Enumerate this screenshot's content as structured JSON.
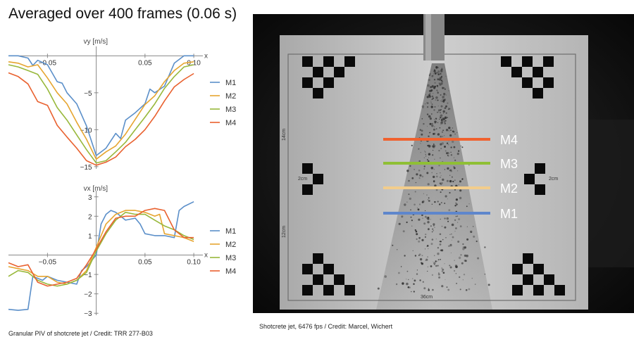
{
  "title": "Averaged over 400 frames (0.06 s)",
  "caption_left": "Granular PIV of shotcrete jet / Credit: TRR 277-B03",
  "caption_right": "Shotcrete jet, 6476 fps / Credit: Marcel, Wichert",
  "colors": {
    "M1": "#5b8fc9",
    "M2": "#e6a530",
    "M3": "#98b83b",
    "M4": "#e9612f"
  },
  "chart_data": [
    {
      "type": "line",
      "ylabel": "vy [m/s]",
      "xlabel": "x",
      "xlim": [
        -0.09,
        0.105
      ],
      "ylim": [
        -15.3,
        0.7
      ],
      "xticks": [
        -0.05,
        0.05,
        0.1
      ],
      "xtick_labels": [
        "−0.05",
        "0.05",
        "0.10"
      ],
      "yticks": [
        -5,
        -10,
        -15
      ],
      "ytick_labels": [
        "−5",
        "−10",
        "−15"
      ],
      "legend_position": "right",
      "series": [
        {
          "name": "M1",
          "x": [
            -0.09,
            -0.08,
            -0.07,
            -0.065,
            -0.06,
            -0.05,
            -0.04,
            -0.035,
            -0.03,
            -0.02,
            -0.01,
            0,
            0.01,
            0.02,
            0.025,
            0.03,
            0.04,
            0.05,
            0.055,
            0.06,
            0.07,
            0.08,
            0.09,
            0.1
          ],
          "y": [
            0,
            0,
            -0.3,
            -1.3,
            -0.6,
            -1.2,
            -3.5,
            -3.7,
            -5,
            -6.5,
            -9.5,
            -13.5,
            -12.5,
            -10.5,
            -11.2,
            -8.7,
            -7.7,
            -6.5,
            -4.5,
            -5,
            -4.1,
            -1,
            0,
            0
          ]
        },
        {
          "name": "M2",
          "x": [
            -0.09,
            -0.08,
            -0.07,
            -0.06,
            -0.05,
            -0.04,
            -0.03,
            -0.02,
            -0.01,
            0,
            0.01,
            0.02,
            0.03,
            0.04,
            0.05,
            0.06,
            0.07,
            0.08,
            0.09,
            0.1
          ],
          "y": [
            -0.8,
            -1,
            -1.5,
            -1.2,
            -3,
            -5,
            -6.5,
            -9,
            -11.3,
            -14,
            -13,
            -12.2,
            -10.6,
            -8.6,
            -6.6,
            -5.4,
            -3.5,
            -2,
            -1,
            -0.8
          ]
        },
        {
          "name": "M3",
          "x": [
            -0.09,
            -0.08,
            -0.07,
            -0.06,
            -0.05,
            -0.04,
            -0.03,
            -0.02,
            -0.01,
            0,
            0.01,
            0.02,
            0.03,
            0.04,
            0.05,
            0.06,
            0.07,
            0.08,
            0.09,
            0.1
          ],
          "y": [
            -1.2,
            -1.5,
            -2,
            -2.5,
            -4.5,
            -7,
            -8.7,
            -10.7,
            -12.7,
            -14.5,
            -14.2,
            -13,
            -11.7,
            -10,
            -8.3,
            -6.5,
            -4.4,
            -2.8,
            -1.5,
            -1.2
          ]
        },
        {
          "name": "M4",
          "x": [
            -0.09,
            -0.08,
            -0.07,
            -0.06,
            -0.05,
            -0.04,
            -0.03,
            -0.02,
            -0.01,
            0,
            0.01,
            0.02,
            0.03,
            0.04,
            0.05,
            0.06,
            0.07,
            0.08,
            0.09,
            0.1
          ],
          "y": [
            -2.3,
            -2.8,
            -3.8,
            -6.2,
            -6.7,
            -9.4,
            -11,
            -12.5,
            -14.2,
            -14.8,
            -14.4,
            -13.7,
            -12.3,
            -11.3,
            -10,
            -8.2,
            -6.1,
            -4.2,
            -3.2,
            -2.4
          ]
        }
      ]
    },
    {
      "type": "line",
      "ylabel": "vx [m/s]",
      "xlabel": "x",
      "xlim": [
        -0.09,
        0.105
      ],
      "ylim": [
        -3.1,
        3.1
      ],
      "xticks": [
        -0.05,
        0.05,
        0.1
      ],
      "xtick_labels": [
        "−0.05",
        "0.05",
        "0.10"
      ],
      "yticks": [
        3,
        2,
        1,
        -1,
        -2,
        -3
      ],
      "ytick_labels": [
        "3",
        "2",
        "1",
        "−1",
        "−2",
        "−3"
      ],
      "legend_position": "right",
      "series": [
        {
          "name": "M1",
          "x": [
            -0.09,
            -0.08,
            -0.07,
            -0.065,
            -0.06,
            -0.055,
            -0.05,
            -0.04,
            -0.03,
            -0.02,
            -0.015,
            -0.01,
            0,
            0.005,
            0.01,
            0.015,
            0.02,
            0.03,
            0.04,
            0.045,
            0.05,
            0.06,
            0.07,
            0.08,
            0.085,
            0.09,
            0.1
          ],
          "y": [
            -2.8,
            -2.85,
            -2.8,
            -1.1,
            -1.2,
            -1.3,
            -1.1,
            -1.3,
            -1.4,
            -1.5,
            -0.8,
            -0.6,
            0,
            1.6,
            2.1,
            2.3,
            2.2,
            1.8,
            1.9,
            1.6,
            1.1,
            1,
            1,
            0.9,
            2.3,
            2.5,
            2.75
          ]
        },
        {
          "name": "M2",
          "x": [
            -0.09,
            -0.08,
            -0.07,
            -0.06,
            -0.05,
            -0.04,
            -0.03,
            -0.02,
            -0.01,
            0,
            0.01,
            0.02,
            0.03,
            0.04,
            0.05,
            0.06,
            0.065,
            0.07,
            0.08,
            0.09,
            0.1
          ],
          "y": [
            -0.6,
            -0.7,
            -0.8,
            -1.1,
            -1.1,
            -1.4,
            -1.5,
            -1.3,
            -0.8,
            0.4,
            1.6,
            2.1,
            2.3,
            2.3,
            2.2,
            2,
            2.1,
            1.1,
            1,
            0.9,
            0.7
          ]
        },
        {
          "name": "M3",
          "x": [
            -0.09,
            -0.08,
            -0.07,
            -0.06,
            -0.05,
            -0.04,
            -0.03,
            -0.02,
            -0.01,
            0,
            0.01,
            0.02,
            0.03,
            0.04,
            0.05,
            0.06,
            0.07,
            0.08,
            0.09,
            0.1
          ],
          "y": [
            -1.1,
            -0.8,
            -0.9,
            -1.3,
            -1.5,
            -1.6,
            -1.5,
            -1.3,
            -0.9,
            0.2,
            1.1,
            1.8,
            2.2,
            2.1,
            2.1,
            1.8,
            1.5,
            1.3,
            1,
            0.8
          ]
        },
        {
          "name": "M4",
          "x": [
            -0.09,
            -0.08,
            -0.07,
            -0.06,
            -0.05,
            -0.04,
            -0.03,
            -0.02,
            -0.01,
            0,
            0.01,
            0.02,
            0.03,
            0.04,
            0.05,
            0.06,
            0.07,
            0.08,
            0.09,
            0.1
          ],
          "y": [
            -0.4,
            -0.6,
            -0.5,
            -1.4,
            -1.6,
            -1.5,
            -1.4,
            -1.2,
            -0.5,
            0.3,
            1.2,
            1.9,
            2,
            2,
            2.3,
            2.4,
            2.3,
            1.3,
            0.9,
            0.9
          ]
        }
      ]
    }
  ],
  "photo": {
    "labels": {
      "h14": "14cm",
      "h12": "12cm",
      "w2a": "2cm",
      "w2b": "2cm",
      "w36": "36cm"
    },
    "lines": [
      {
        "name": "M4",
        "color": "#f0622f"
      },
      {
        "name": "M3",
        "color": "#8fbf35"
      },
      {
        "name": "M2",
        "color": "#f2cd8c"
      },
      {
        "name": "M1",
        "color": "#5e86cc"
      }
    ]
  }
}
